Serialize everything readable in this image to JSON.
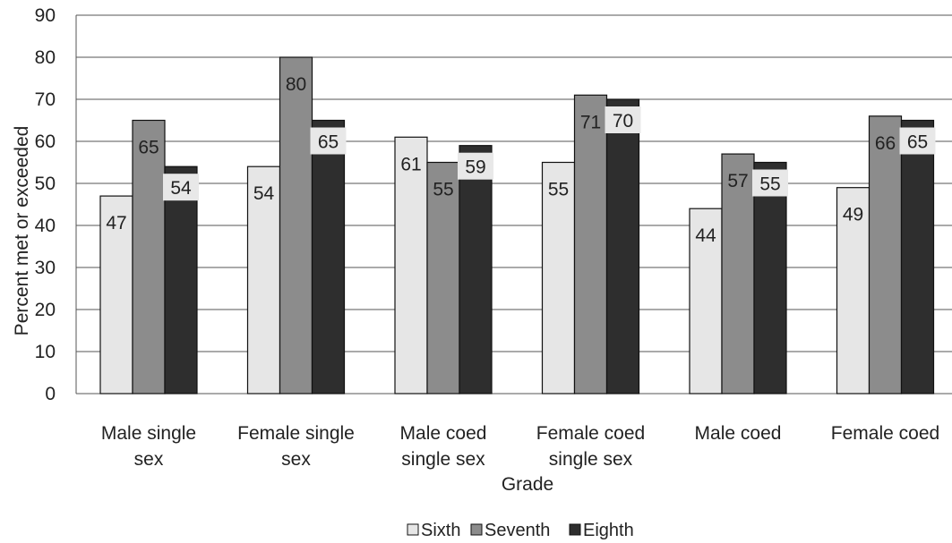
{
  "chart_data": {
    "type": "bar",
    "title": "",
    "xlabel": "Grade",
    "ylabel": "Percent met or exceeded",
    "ylim": [
      0,
      90
    ],
    "yticks": [
      0,
      10,
      20,
      30,
      40,
      50,
      60,
      70,
      80,
      90
    ],
    "categories": [
      [
        "Male single",
        "sex"
      ],
      [
        "Female single",
        "sex"
      ],
      [
        "Male coed",
        "single sex"
      ],
      [
        "Female coed",
        "single sex"
      ],
      [
        "Male coed"
      ],
      [
        "Female coed"
      ]
    ],
    "series": [
      {
        "name": "Sixth",
        "color": "#e6e6e6",
        "values": [
          47,
          54,
          61,
          55,
          44,
          49
        ]
      },
      {
        "name": "Seventh",
        "color": "#8c8c8c",
        "values": [
          65,
          80,
          55,
          71,
          57,
          66
        ]
      },
      {
        "name": "Eighth",
        "color": "#2e2e2e",
        "values": [
          54,
          65,
          59,
          70,
          55,
          65
        ]
      }
    ],
    "grid": true,
    "legend": "bottom-center",
    "data_labels": true
  }
}
